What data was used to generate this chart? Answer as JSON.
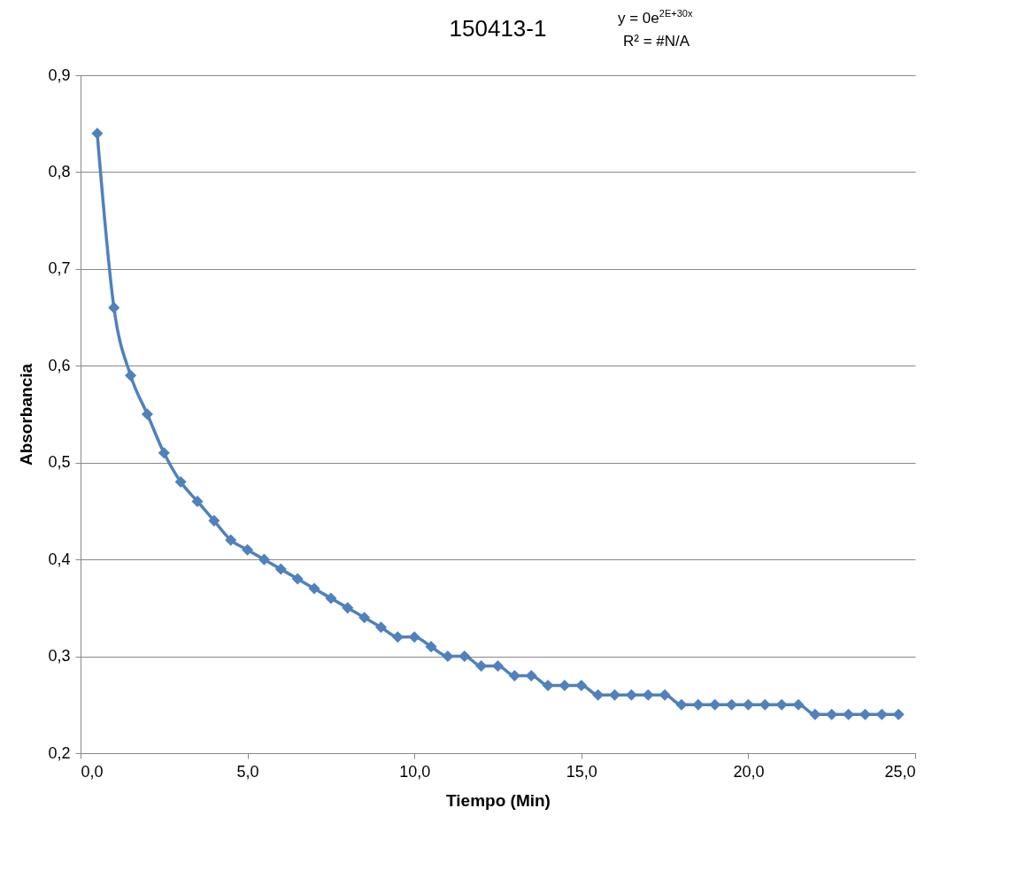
{
  "chart_data": {
    "type": "line",
    "title": "150413-1",
    "xlabel": "Tiempo (Min)",
    "ylabel": "Absorbancia",
    "annotations": [
      "y = 0e$^{2E+30x}$",
      "R² = #N/A"
    ],
    "x": [
      0.5,
      1,
      1.5,
      2,
      2.5,
      3,
      3.5,
      4,
      4.5,
      5,
      5.5,
      6,
      6.5,
      7,
      7.5,
      8,
      8.5,
      9,
      9.5,
      10,
      10.5,
      11,
      11.5,
      12,
      12.5,
      13,
      13.5,
      14,
      14.5,
      15,
      15.5,
      16,
      16.5,
      17,
      17.5,
      18,
      18.5,
      19,
      19.5,
      20,
      20.5,
      21,
      21.5,
      22,
      22.5,
      23,
      23.5,
      24,
      24.5
    ],
    "series": [
      {
        "color": "#4f81bd",
        "values": [
          0.84,
          0.66,
          0.59,
          0.55,
          0.51,
          0.48,
          0.46,
          0.44,
          0.42,
          0.41,
          0.4,
          0.39,
          0.38,
          0.37,
          0.36,
          0.35,
          0.34,
          0.33,
          0.32,
          0.32,
          0.31,
          0.3,
          0.3,
          0.29,
          0.29,
          0.28,
          0.28,
          0.27,
          0.27,
          0.27,
          0.26,
          0.26,
          0.26,
          0.26,
          0.26,
          0.25,
          0.25,
          0.25,
          0.25,
          0.25,
          0.25,
          0.25,
          0.25,
          0.24,
          0.24,
          0.24,
          0.24,
          0.24,
          0.24
        ]
      }
    ],
    "xlim": [
      0,
      25
    ],
    "xticks": [
      {
        "value": 0,
        "label": "0,0"
      },
      {
        "value": 5,
        "label": "5,0"
      },
      {
        "value": 10,
        "label": "10,0"
      },
      {
        "value": 15,
        "label": "15,0"
      },
      {
        "value": 20,
        "label": "20,0"
      },
      {
        "value": 25,
        "label": "25,0"
      }
    ],
    "ylim": [
      0.2,
      0.9
    ],
    "yticks": [
      {
        "value": 0.2,
        "label": "0,2"
      },
      {
        "value": 0.3,
        "label": "0,3"
      },
      {
        "value": 0.4,
        "label": "0,4"
      },
      {
        "value": 0.5,
        "label": "0,5"
      },
      {
        "value": 0.6,
        "label": "0,6"
      },
      {
        "value": 0.7,
        "label": "0,7"
      },
      {
        "value": 0.8,
        "label": "0,8"
      },
      {
        "value": 0.9,
        "label": "0,9"
      }
    ],
    "grid": "y",
    "marker": "diamond",
    "line_style": "solid"
  }
}
